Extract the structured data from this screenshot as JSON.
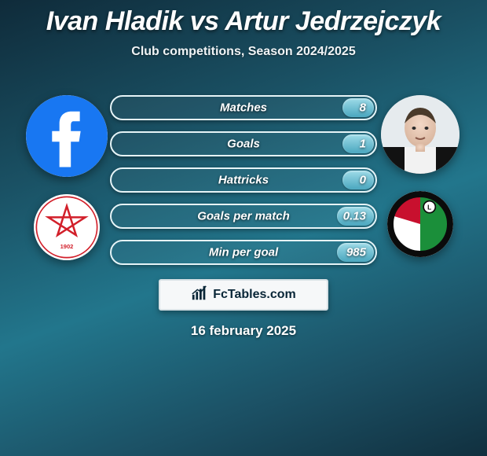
{
  "title": "Ivan Hladik vs Artur Jedrzejczyk",
  "subtitle": "Club competitions, Season 2024/2025",
  "date": "16 february 2025",
  "site_name": "FcTables.com",
  "colors": {
    "bg_gradient": [
      "#0f2b3a",
      "#1a5164",
      "#22768c",
      "#1b4f63",
      "#11303f"
    ],
    "bar_border": "#e6f4f7",
    "bar_fill_top": "#9edbe8",
    "bar_fill_bottom": "#4aa7bf",
    "text": "#ffffff",
    "badge_bg": "#f6f8f9",
    "badge_border": "#d8e2e6",
    "badge_text": "#092637"
  },
  "fonts": {
    "title_size": 34,
    "title_weight": 800,
    "subtitle_size": 16,
    "bar_label_size": 15,
    "date_size": 17
  },
  "bars": [
    {
      "label": "Matches",
      "value": "8",
      "fill_pct": 12
    },
    {
      "label": "Goals",
      "value": "1",
      "fill_pct": 12
    },
    {
      "label": "Hattricks",
      "value": "0",
      "fill_pct": 12
    },
    {
      "label": "Goals per match",
      "value": "0.13",
      "fill_pct": 14
    },
    {
      "label": "Min per goal",
      "value": "985",
      "fill_pct": 14
    }
  ],
  "left": {
    "avatar_desc": "facebook-logo-circle",
    "avatar_bg": "#1877f2",
    "crest_desc": "vicenza-calcio-crest",
    "crest_bg": "#ffffff",
    "crest_accent": "#d21f2a"
  },
  "right": {
    "avatar_desc": "player-headshot",
    "avatar_bg": "#e4e7ea",
    "crest_desc": "legia-warsaw-crest",
    "crest_bg": "#ffffff",
    "crest_colors": [
      "#1b8f3a",
      "#c8102e",
      "#0b0b0b"
    ]
  }
}
